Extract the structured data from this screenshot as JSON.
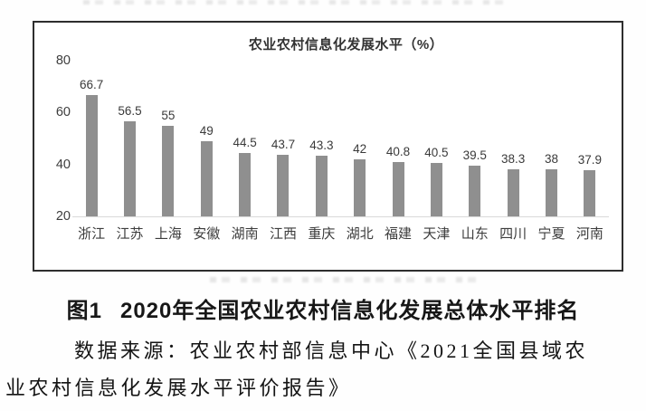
{
  "figure": {
    "caption": {
      "label": "图1",
      "text": "2020年全国农业农村信息化发展总体水平排名"
    },
    "source": {
      "line1": "数据来源：农业农村部信息中心《2021全国县域农",
      "line2": "业农村信息化发展水平评价报告》"
    }
  },
  "chart_data": {
    "type": "bar",
    "title": "农业农村信息化发展水平（%）",
    "categories": [
      "浙江",
      "江苏",
      "上海",
      "安徽",
      "湖南",
      "江西",
      "重庆",
      "湖北",
      "福建",
      "天津",
      "山东",
      "四川",
      "宁夏",
      "河南"
    ],
    "values": [
      66.7,
      56.5,
      55,
      49,
      44.5,
      43.7,
      43.3,
      42,
      40.8,
      40.5,
      39.5,
      38.3,
      38,
      37.9
    ],
    "xlabel": "",
    "ylabel": "",
    "ylim": [
      20,
      80
    ],
    "yticks": [
      80,
      60,
      40,
      20
    ],
    "grid": false,
    "legend": false,
    "bar_color": "#8f8f8f",
    "value_labels": true
  }
}
